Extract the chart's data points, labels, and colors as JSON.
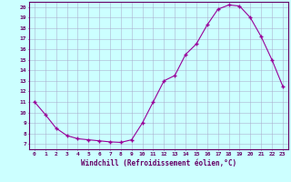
{
  "x": [
    0,
    1,
    2,
    3,
    4,
    5,
    6,
    7,
    8,
    9,
    10,
    11,
    12,
    13,
    14,
    15,
    16,
    17,
    18,
    19,
    20,
    21,
    22,
    23
  ],
  "y": [
    11,
    9.8,
    8.5,
    7.8,
    7.5,
    7.4,
    7.3,
    7.2,
    7.15,
    7.4,
    9.0,
    11.0,
    13.0,
    13.5,
    15.5,
    16.5,
    18.3,
    19.8,
    20.2,
    20.1,
    19.0,
    17.2,
    15.0,
    12.5
  ],
  "line_color": "#990099",
  "marker_color": "#990099",
  "bg_color": "#ccffff",
  "grid_color": "#aaaacc",
  "axis_color": "#660066",
  "xlabel": "Windchill (Refroidissement éolien,°C)",
  "ylim_min": 6.5,
  "ylim_max": 20.5,
  "xlim_min": -0.5,
  "xlim_max": 23.5,
  "yticks": [
    7,
    8,
    9,
    10,
    11,
    12,
    13,
    14,
    15,
    16,
    17,
    18,
    19,
    20
  ],
  "xticks": [
    0,
    1,
    2,
    3,
    4,
    5,
    6,
    7,
    8,
    9,
    10,
    11,
    12,
    13,
    14,
    15,
    16,
    17,
    18,
    19,
    20,
    21,
    22,
    23
  ]
}
